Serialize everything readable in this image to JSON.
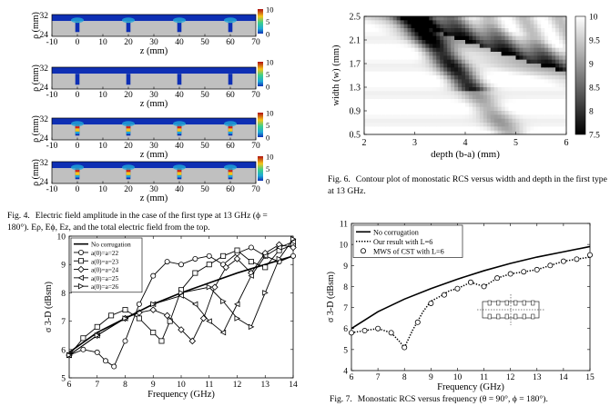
{
  "captions": {
    "fig4": {
      "label": "Fig. 4.",
      "text": "Electric field amplitude in the case of the first type at 13 GHz (ϕ = 180°). Eρ, Eϕ, Ez, and the total electric field from the top."
    },
    "fig6": {
      "label": "Fig. 6.",
      "text": "Contour plot of monostatic RCS versus width and depth in the first type at 13 GHz."
    },
    "fig7": {
      "label": "Fig. 7.",
      "text": "Monostatic RCS versus frequency (θ = 90°, ϕ = 180°)."
    }
  },
  "colors": {
    "field_background": "#0e2fb4",
    "metal": "#c0c0c0",
    "hot": "#d61f12",
    "warm": "#f5c518",
    "cool": "#1fa8d8"
  },
  "chart_data": [
    {
      "id": "fig4a",
      "type": "heatmap",
      "xlabel": "z (mm)",
      "ylabel": "ρ (mm)",
      "x_ticks": [
        -10,
        0,
        10,
        20,
        30,
        40,
        50,
        60,
        70
      ],
      "y_ticks": [
        24,
        32
      ],
      "xlim": [
        -10,
        70
      ],
      "ylim": [
        24,
        32
      ],
      "colorbar_ticks": [
        10,
        5,
        0
      ],
      "grooves_z": [
        0,
        20,
        40,
        60
      ],
      "hot_fraction": 0.15
    },
    {
      "id": "fig4b",
      "type": "heatmap",
      "xlabel": "z (mm)",
      "ylabel": "ρ (mm)",
      "x_ticks": [
        -10,
        0,
        10,
        20,
        30,
        40,
        50,
        60,
        70
      ],
      "y_ticks": [
        24,
        32
      ],
      "xlim": [
        -10,
        70
      ],
      "ylim": [
        24,
        32
      ],
      "colorbar_ticks": [
        10,
        5,
        0
      ],
      "grooves_z": [
        0,
        20,
        40,
        60
      ],
      "hot_fraction": 0.0
    },
    {
      "id": "fig4c",
      "type": "heatmap",
      "xlabel": "z (mm)",
      "ylabel": "ρ (mm)",
      "x_ticks": [
        -10,
        0,
        10,
        20,
        30,
        40,
        50,
        60,
        70
      ],
      "y_ticks": [
        24,
        32
      ],
      "xlim": [
        -10,
        70
      ],
      "ylim": [
        24,
        32
      ],
      "colorbar_ticks": [
        10,
        5,
        0
      ],
      "grooves_z": [
        0,
        20,
        40,
        60
      ],
      "hot_fraction": 0.85
    },
    {
      "id": "fig4d",
      "type": "heatmap",
      "xlabel": "z (mm)",
      "ylabel": "ρ (mm)",
      "x_ticks": [
        -10,
        0,
        10,
        20,
        30,
        40,
        50,
        60,
        70
      ],
      "y_ticks": [
        24,
        32
      ],
      "xlim": [
        -10,
        70
      ],
      "ylim": [
        24,
        32
      ],
      "colorbar_ticks": [
        10,
        5,
        0
      ],
      "grooves_z": [
        0,
        20,
        40,
        60
      ],
      "hot_fraction": 0.85
    },
    {
      "id": "fig5",
      "type": "line",
      "xlabel": "Frequency (GHz)",
      "ylabel": "σ 3-D (dBsm)",
      "xlim": [
        6,
        14
      ],
      "ylim": [
        5,
        10
      ],
      "x_ticks": [
        6,
        7,
        8,
        9,
        10,
        11,
        12,
        13,
        14
      ],
      "y_ticks": [
        5,
        6,
        7,
        8,
        9,
        10
      ],
      "legend_position": "top-left",
      "series": [
        {
          "name": "No corrugation",
          "marker": "none",
          "dip": null,
          "x": [
            6,
            7,
            8,
            9,
            10,
            11,
            12,
            13,
            14
          ],
          "y": [
            5.9,
            6.6,
            7.1,
            7.6,
            8.0,
            8.35,
            8.7,
            9.0,
            9.3
          ]
        },
        {
          "name": "a(0)=a=22",
          "marker": "circle",
          "dip": 7.6,
          "x": [
            6,
            6.5,
            7,
            7.3,
            7.6,
            8,
            8.5,
            9,
            9.5,
            10,
            10.5,
            11,
            11.5,
            12,
            12.5,
            13,
            13.5,
            14
          ],
          "y": [
            5.8,
            6.0,
            5.9,
            5.6,
            5.4,
            6.3,
            7.6,
            8.6,
            9.1,
            9.0,
            9.2,
            9.3,
            9.0,
            9.4,
            9.6,
            9.3,
            9.1,
            9.3
          ]
        },
        {
          "name": "a(0)=a=23",
          "marker": "square",
          "dip": 9.0,
          "x": [
            6,
            6.5,
            7,
            7.5,
            8,
            8.5,
            9,
            9.3,
            9.6,
            10,
            10.5,
            11,
            11.5,
            12,
            12.5,
            13,
            13.5,
            14
          ],
          "y": [
            5.8,
            6.4,
            6.8,
            7.2,
            7.4,
            7.1,
            6.6,
            6.3,
            7.0,
            8.1,
            8.7,
            9.0,
            9.3,
            9.5,
            9.1,
            8.9,
            9.5,
            9.7
          ]
        },
        {
          "name": "a(0)=a=24",
          "marker": "diamond",
          "dip": 10.4,
          "x": [
            6,
            7,
            8,
            8.5,
            9,
            9.5,
            10,
            10.4,
            10.8,
            11.2,
            11.6,
            12,
            12.5,
            13,
            13.5,
            14
          ],
          "y": [
            5.8,
            6.5,
            7.1,
            7.3,
            7.4,
            7.2,
            6.7,
            6.3,
            7.1,
            8.2,
            8.9,
            9.2,
            8.7,
            9.4,
            9.7,
            9.6
          ]
        },
        {
          "name": "a(0)=a=25",
          "marker": "tri-left",
          "dip": 11.5,
          "x": [
            6,
            7,
            8,
            9,
            10,
            10.5,
            11,
            11.5,
            12,
            12.5,
            13,
            13.5,
            14
          ],
          "y": [
            5.8,
            6.5,
            7.1,
            7.6,
            7.9,
            7.6,
            7.0,
            6.6,
            7.6,
            8.6,
            9.3,
            9.6,
            9.8
          ]
        },
        {
          "name": "a(0)=a=26",
          "marker": "tri-right",
          "dip": 12.5,
          "x": [
            6,
            7,
            8,
            9,
            10,
            11,
            11.5,
            12,
            12.5,
            13,
            13.5,
            14
          ],
          "y": [
            5.8,
            6.5,
            7.1,
            7.6,
            8.0,
            8.2,
            7.7,
            7.1,
            6.8,
            8.0,
            9.2,
            9.9
          ]
        }
      ]
    },
    {
      "id": "fig6",
      "type": "heatmap",
      "xlabel": "depth (b-a) (mm)",
      "ylabel": "width (w) (mm)",
      "xlim": [
        2,
        6
      ],
      "ylim": [
        0.5,
        2.5
      ],
      "x_ticks": [
        2,
        3,
        4,
        5,
        6
      ],
      "y_ticks": [
        0.5,
        0.9,
        1.3,
        1.7,
        2.1,
        2.5
      ],
      "colorbar_ticks": [
        10,
        9.5,
        9,
        8.5,
        8,
        7.5
      ],
      "clim": [
        7.5,
        10
      ]
    },
    {
      "id": "fig7",
      "type": "line",
      "xlabel": "Frequency (GHz)",
      "ylabel": "σ 3-D (dBsm)",
      "xlim": [
        6,
        15
      ],
      "ylim": [
        4,
        11
      ],
      "x_ticks": [
        6,
        7,
        8,
        9,
        10,
        11,
        12,
        13,
        14,
        15
      ],
      "y_ticks": [
        4,
        5,
        6,
        7,
        8,
        9,
        10,
        11
      ],
      "legend_position": "top-left",
      "series": [
        {
          "name": "No corrugation",
          "style": "solid",
          "marker": "none",
          "x": [
            6,
            7,
            8,
            9,
            10,
            11,
            12,
            13,
            14,
            15
          ],
          "y": [
            6.0,
            6.8,
            7.4,
            7.9,
            8.35,
            8.75,
            9.1,
            9.4,
            9.65,
            9.9
          ]
        },
        {
          "name": "Our result with L=6",
          "style": "dotted",
          "marker": "none",
          "x": [
            6,
            6.5,
            7,
            7.5,
            7.8,
            8,
            8.3,
            8.7,
            9,
            9.3,
            9.7,
            10,
            10.5,
            11,
            11.5,
            12,
            12.5,
            13,
            13.5,
            14,
            14.5,
            15
          ],
          "y": [
            5.8,
            5.9,
            6.0,
            5.8,
            5.4,
            5.1,
            5.9,
            6.8,
            7.3,
            7.5,
            7.8,
            7.9,
            8.2,
            8.0,
            8.4,
            8.6,
            8.7,
            8.8,
            9.0,
            9.2,
            9.3,
            9.4
          ]
        },
        {
          "name": "MWS of CST with L=6",
          "style": "none",
          "marker": "circle",
          "x": [
            6,
            6.5,
            7,
            7.5,
            8,
            8.5,
            9,
            9.5,
            10,
            10.5,
            11,
            11.5,
            12,
            12.5,
            13,
            13.5,
            14,
            14.5,
            15
          ],
          "y": [
            5.8,
            5.9,
            6.0,
            5.8,
            5.1,
            6.3,
            7.2,
            7.6,
            7.9,
            8.2,
            8.0,
            8.4,
            8.6,
            8.7,
            8.8,
            9.0,
            9.2,
            9.3,
            9.5
          ]
        }
      ]
    }
  ]
}
